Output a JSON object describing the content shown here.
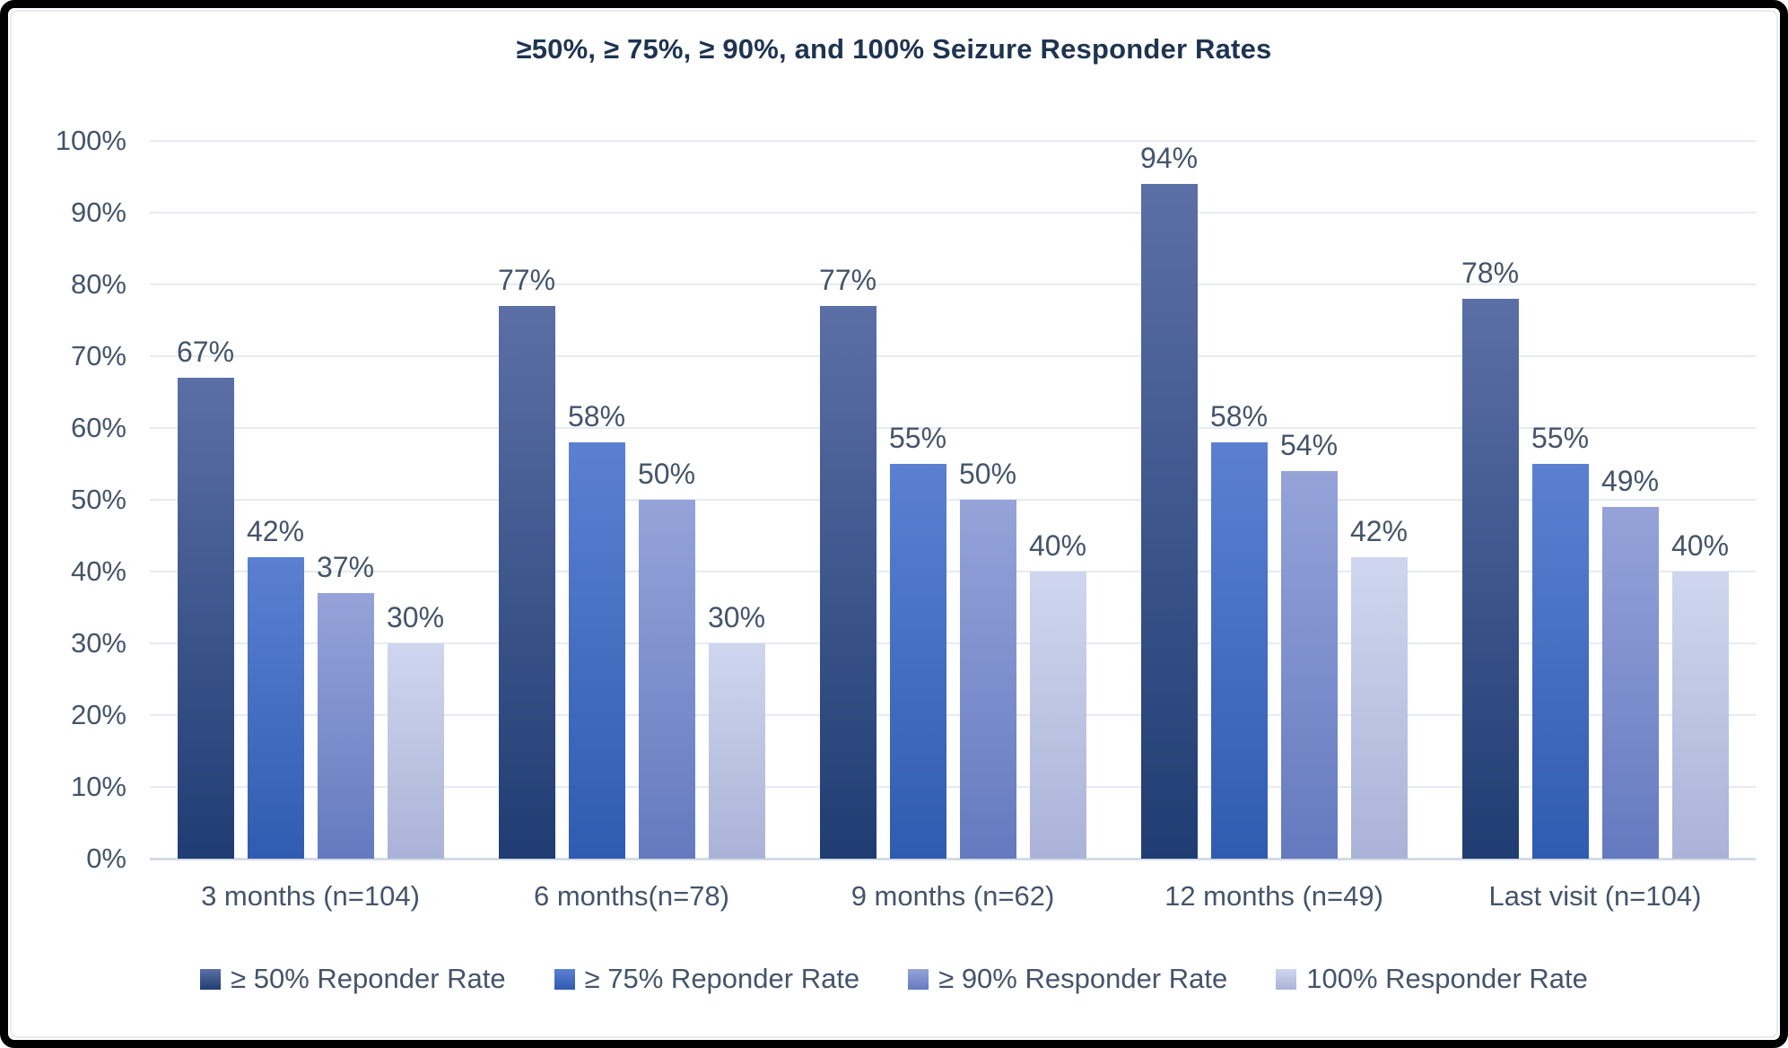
{
  "chart_data": {
    "type": "bar",
    "title": "≥50%, ≥ 75%, ≥ 90%, and 100% Seizure Responder Rates",
    "categories": [
      "3 months (n=104)",
      "6 months(n=78)",
      "9 months (n=62)",
      "12 months (n=49)",
      "Last visit (n=104)"
    ],
    "series": [
      {
        "name": "≥ 50% Reponder Rate",
        "values": [
          67,
          77,
          77,
          94,
          78
        ],
        "color_top": "#5B6FA6",
        "color_bottom": "#1F3D72"
      },
      {
        "name": "≥ 75% Reponder Rate",
        "values": [
          42,
          58,
          55,
          58,
          55
        ],
        "color_top": "#5B80D2",
        "color_bottom": "#2F5CB0"
      },
      {
        "name": "≥ 90% Responder Rate",
        "values": [
          37,
          50,
          50,
          54,
          49
        ],
        "color_top": "#95A3D9",
        "color_bottom": "#647ABF"
      },
      {
        "name": "100% Responder Rate",
        "values": [
          30,
          30,
          40,
          42,
          40
        ],
        "color_top": "#CFD6EE",
        "color_bottom": "#AAB3D8"
      }
    ],
    "xlabel": "",
    "ylabel": "",
    "ylim": [
      0,
      100
    ],
    "ytick_step": 10,
    "yticks": [
      "0%",
      "10%",
      "20%",
      "30%",
      "40%",
      "50%",
      "60%",
      "70%",
      "80%",
      "90%",
      "100%"
    ],
    "data_label_suffix": "%",
    "grid": true,
    "legend_position": "bottom",
    "colors": {
      "title_text": "#1E3450",
      "axis_text": "#44546A",
      "data_label_text": "#44546A",
      "gridline": "#E6EAF2",
      "axis_line": "#D4DBE6",
      "background": "#FFFFFF",
      "outer_border": "#000000"
    }
  }
}
